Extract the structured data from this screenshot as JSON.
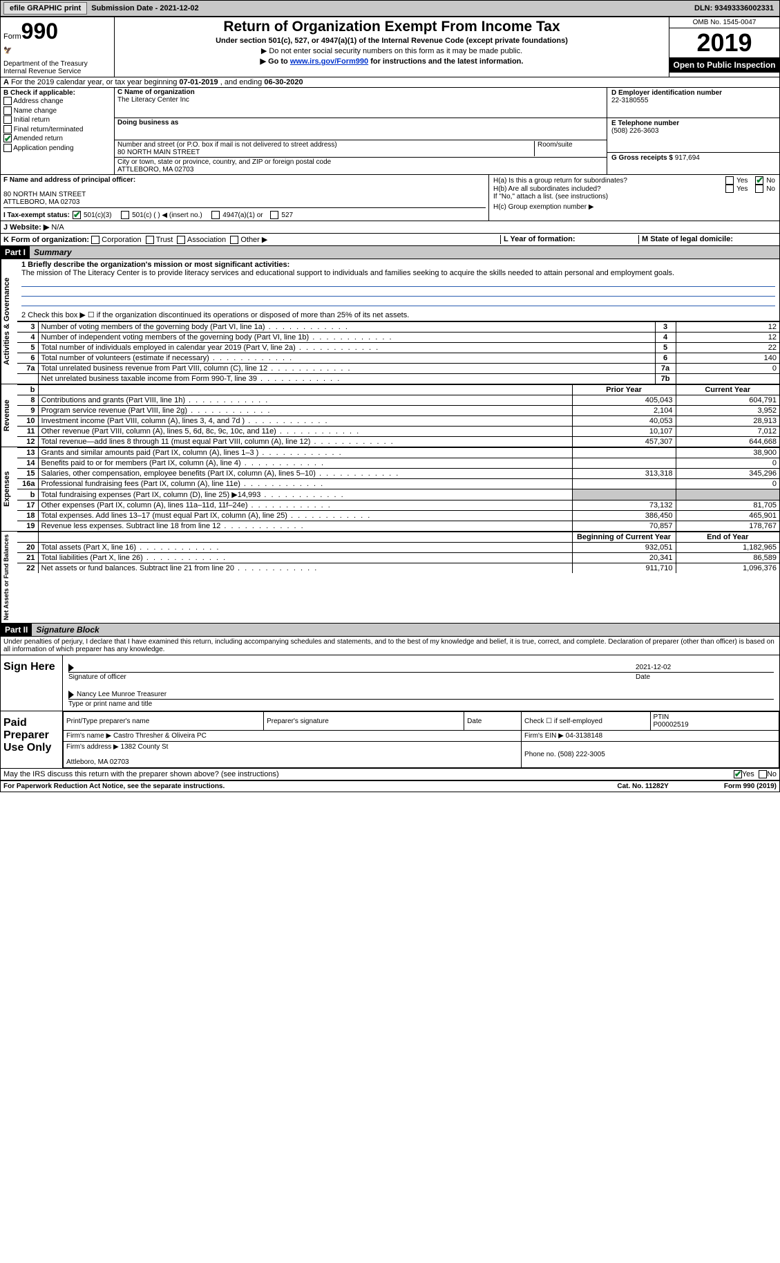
{
  "toolbar": {
    "efile_btn": "efile GRAPHIC print",
    "submission_label": "Submission Date - ",
    "submission_date": "2021-12-02",
    "dln_label": "DLN: ",
    "dln": "93493336002331"
  },
  "header": {
    "form_label": "Form",
    "form_num": "990",
    "dept": "Department of the Treasury\nInternal Revenue Service",
    "title": "Return of Organization Exempt From Income Tax",
    "subtitle": "Under section 501(c), 527, or 4947(a)(1) of the Internal Revenue Code (except private foundations)",
    "note1": "▶ Do not enter social security numbers on this form as it may be made public.",
    "note2_pre": "▶ Go to ",
    "note2_link": "www.irs.gov/Form990",
    "note2_post": " for instructions and the latest information.",
    "omb": "OMB No. 1545-0047",
    "year": "2019",
    "open": "Open to Public Inspection"
  },
  "row_a": {
    "pre": "A",
    "text": "For the 2019 calendar year, or tax year beginning ",
    "begin": "07-01-2019",
    "mid": " , and ending ",
    "end": "06-30-2020"
  },
  "col_b": {
    "label": "B Check if applicable:",
    "opts": [
      "Address change",
      "Name change",
      "Initial return",
      "Final return/terminated",
      "Amended return",
      "Application pending"
    ],
    "checked_idx": 4
  },
  "col_c": {
    "c_label": "C Name of organization",
    "c_val": "The Literacy Center Inc",
    "dba_label": "Doing business as",
    "dba_val": "",
    "addr_label": "Number and street (or P.O. box if mail is not delivered to street address)",
    "room_label": "Room/suite",
    "addr_val": "80 NORTH MAIN STREET",
    "city_label": "City or town, state or province, country, and ZIP or foreign postal code",
    "city_val": "ATTLEBORO, MA  02703",
    "f_label": "F Name and address of principal officer:",
    "f_name": "",
    "f_addr": "80 NORTH MAIN STREET\nATTLEBORO, MA  02703"
  },
  "col_d": {
    "d_label": "D Employer identification number",
    "d_val": "22-3180555",
    "e_label": "E Telephone number",
    "e_val": "(508) 226-3603",
    "g_label": "G Gross receipts $ ",
    "g_val": "917,694"
  },
  "h": {
    "ha_label": "H(a)  Is this a group return for subordinates?",
    "ha_yes": "Yes",
    "ha_no": "No",
    "hb_label": "H(b)  Are all subordinates included?",
    "hb_note": "If \"No,\" attach a list. (see instructions)",
    "hc_label": "H(c)  Group exemption number ▶"
  },
  "row_i": {
    "label": "I   Tax-exempt status:",
    "c3": "501(c)(3)",
    "c": "501(c) (  ) ◀ (insert no.)",
    "a1": "4947(a)(1) or",
    "527": "527"
  },
  "row_j": {
    "label": "J   Website: ▶",
    "val": "N/A"
  },
  "row_k": {
    "label": "K Form of organization:",
    "opts": [
      "Corporation",
      "Trust",
      "Association",
      "Other ▶"
    ],
    "l_label": "L Year of formation:",
    "l_val": "",
    "m_label": "M State of legal domicile:",
    "m_val": ""
  },
  "parts": {
    "p1": "Part I",
    "p1_title": "Summary",
    "p2": "Part II",
    "p2_title": "Signature Block"
  },
  "mission": {
    "q": "1  Briefly describe the organization's mission or most significant activities:",
    "text": "The mission of The Literacy Center is to provide literacy services and educational support to individuals and families seeking to acquire the skills needed to attain personal and employment goals."
  },
  "line2": "2   Check this box ▶ ☐  if the organization discontinued its operations or disposed of more than 25% of its net assets.",
  "gov_rows": [
    {
      "n": "3",
      "d": "Number of voting members of the governing body (Part VI, line 1a)",
      "box": "3",
      "v": "12"
    },
    {
      "n": "4",
      "d": "Number of independent voting members of the governing body (Part VI, line 1b)",
      "box": "4",
      "v": "12"
    },
    {
      "n": "5",
      "d": "Total number of individuals employed in calendar year 2019 (Part V, line 2a)",
      "box": "5",
      "v": "22"
    },
    {
      "n": "6",
      "d": "Total number of volunteers (estimate if necessary)",
      "box": "6",
      "v": "140"
    },
    {
      "n": "7a",
      "d": "Total unrelated business revenue from Part VIII, column (C), line 12",
      "box": "7a",
      "v": "0"
    },
    {
      "n": "",
      "d": "Net unrelated business taxable income from Form 990-T, line 39",
      "box": "7b",
      "v": ""
    }
  ],
  "rev_hdr": {
    "b": "b",
    "py": "Prior Year",
    "cy": "Current Year"
  },
  "rev_rows": [
    {
      "n": "8",
      "d": "Contributions and grants (Part VIII, line 1h)",
      "py": "405,043",
      "cy": "604,791"
    },
    {
      "n": "9",
      "d": "Program service revenue (Part VIII, line 2g)",
      "py": "2,104",
      "cy": "3,952"
    },
    {
      "n": "10",
      "d": "Investment income (Part VIII, column (A), lines 3, 4, and 7d )",
      "py": "40,053",
      "cy": "28,913"
    },
    {
      "n": "11",
      "d": "Other revenue (Part VIII, column (A), lines 5, 6d, 8c, 9c, 10c, and 11e)",
      "py": "10,107",
      "cy": "7,012"
    },
    {
      "n": "12",
      "d": "Total revenue—add lines 8 through 11 (must equal Part VIII, column (A), line 12)",
      "py": "457,307",
      "cy": "644,668"
    }
  ],
  "exp_rows": [
    {
      "n": "13",
      "d": "Grants and similar amounts paid (Part IX, column (A), lines 1–3 )",
      "py": "",
      "cy": "38,900"
    },
    {
      "n": "14",
      "d": "Benefits paid to or for members (Part IX, column (A), line 4)",
      "py": "",
      "cy": "0"
    },
    {
      "n": "15",
      "d": "Salaries, other compensation, employee benefits (Part IX, column (A), lines 5–10)",
      "py": "313,318",
      "cy": "345,296"
    },
    {
      "n": "16a",
      "d": "Professional fundraising fees (Part IX, column (A), line 11e)",
      "py": "",
      "cy": "0"
    },
    {
      "n": "b",
      "d": "Total fundraising expenses (Part IX, column (D), line 25) ▶14,993",
      "py": "GRAY",
      "cy": "GRAY"
    },
    {
      "n": "17",
      "d": "Other expenses (Part IX, column (A), lines 11a–11d, 11f–24e)",
      "py": "73,132",
      "cy": "81,705"
    },
    {
      "n": "18",
      "d": "Total expenses. Add lines 13–17 (must equal Part IX, column (A), line 25)",
      "py": "386,450",
      "cy": "465,901"
    },
    {
      "n": "19",
      "d": "Revenue less expenses. Subtract line 18 from line 12",
      "py": "70,857",
      "cy": "178,767"
    }
  ],
  "na_hdr": {
    "b": "Beginning of Current Year",
    "e": "End of Year"
  },
  "na_rows": [
    {
      "n": "20",
      "d": "Total assets (Part X, line 16)",
      "py": "932,051",
      "cy": "1,182,965"
    },
    {
      "n": "21",
      "d": "Total liabilities (Part X, line 26)",
      "py": "20,341",
      "cy": "86,589"
    },
    {
      "n": "22",
      "d": "Net assets or fund balances. Subtract line 21 from line 20",
      "py": "911,710",
      "cy": "1,096,376"
    }
  ],
  "side_labels": {
    "gov": "Activities & Governance",
    "rev": "Revenue",
    "exp": "Expenses",
    "na": "Net Assets or Fund Balances"
  },
  "sig": {
    "decl": "Under penalties of perjury, I declare that I have examined this return, including accompanying schedules and statements, and to the best of my knowledge and belief, it is true, correct, and complete. Declaration of preparer (other than officer) is based on all information of which preparer has any knowledge.",
    "sign_here": "Sign Here",
    "sig_officer_lbl": "Signature of officer",
    "date_lbl": "Date",
    "date_val": "2021-12-02",
    "name_val": "Nancy Lee Munroe  Treasurer",
    "name_lbl": "Type or print name and title"
  },
  "prep": {
    "title": "Paid Preparer Use Only",
    "h_name": "Print/Type preparer's name",
    "h_sig": "Preparer's signature",
    "h_date": "Date",
    "h_check": "Check ☐ if self-employed",
    "h_ptin": "PTIN",
    "ptin_val": "P00002519",
    "firm_name_lbl": "Firm's name    ▶ ",
    "firm_name": "Castro Thresher & Oliveira PC",
    "firm_ein_lbl": "Firm's EIN ▶ ",
    "firm_ein": "04-3138148",
    "firm_addr_lbl": "Firm's address ▶ ",
    "firm_addr": "1382 County St\n\nAttleboro, MA  02703",
    "phone_lbl": "Phone no. ",
    "phone": "(508) 222-3005"
  },
  "discuss": {
    "q": "May the IRS discuss this return with the preparer shown above? (see instructions)",
    "yes": "Yes",
    "no": "No"
  },
  "footer": {
    "left": "For Paperwork Reduction Act Notice, see the separate instructions.",
    "mid": "Cat. No. 11282Y",
    "right": "Form 990 (2019)"
  },
  "colors": {
    "bg": "#ffffff",
    "toolbar": "#c8c8c8",
    "black": "#000000",
    "link": "#0033cc",
    "check": "#0a7d2c",
    "underline": "#2a5db0"
  }
}
